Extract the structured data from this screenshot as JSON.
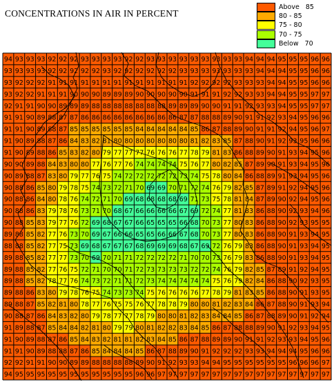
{
  "title": "CONCENTRATIONS IN AIR IN PERCENT",
  "legend": [
    {
      "label": "Above   85",
      "color": "#FF5A00"
    },
    {
      "label": "80 - 85",
      "color": "#FFAA00"
    },
    {
      "label": "75 - 80",
      "color": "#FFFF00"
    },
    {
      "label": "70 - 75",
      "color": "#AAFF00"
    },
    {
      "label": "Below   70",
      "color": "#44FF99"
    }
  ],
  "grid": {
    "rows": 28,
    "cols": 30,
    "values": [
      [
        94,
        93,
        93,
        93,
        92,
        92,
        92,
        93,
        93,
        93,
        93,
        92,
        92,
        93,
        93,
        93,
        93,
        93,
        93,
        93,
        93,
        93,
        94,
        94,
        94,
        95,
        95,
        95,
        96,
        96
      ],
      [
        93,
        93,
        93,
        93,
        92,
        92,
        92,
        92,
        92,
        93,
        92,
        92,
        92,
        92,
        92,
        92,
        93,
        93,
        93,
        93,
        93,
        93,
        93,
        94,
        94,
        94,
        95,
        95,
        96,
        96
      ],
      [
        93,
        92,
        92,
        92,
        91,
        91,
        91,
        91,
        91,
        91,
        91,
        91,
        91,
        91,
        91,
        91,
        91,
        92,
        92,
        92,
        92,
        93,
        93,
        93,
        94,
        94,
        95,
        95,
        96,
        96
      ],
      [
        93,
        92,
        92,
        91,
        91,
        91,
        90,
        90,
        90,
        89,
        89,
        89,
        90,
        90,
        90,
        90,
        90,
        91,
        91,
        91,
        92,
        92,
        93,
        93,
        94,
        94,
        95,
        95,
        97,
        97
      ],
      [
        92,
        91,
        91,
        90,
        90,
        89,
        89,
        89,
        88,
        88,
        88,
        88,
        88,
        88,
        88,
        89,
        89,
        89,
        90,
        90,
        91,
        91,
        92,
        93,
        93,
        94,
        95,
        95,
        97,
        97
      ],
      [
        91,
        91,
        90,
        89,
        88,
        87,
        87,
        86,
        86,
        86,
        86,
        86,
        86,
        86,
        86,
        86,
        87,
        87,
        88,
        88,
        89,
        90,
        91,
        91,
        92,
        93,
        94,
        95,
        96,
        96
      ],
      [
        91,
        91,
        90,
        89,
        88,
        87,
        85,
        85,
        85,
        85,
        85,
        85,
        84,
        84,
        84,
        84,
        84,
        85,
        86,
        87,
        88,
        89,
        90,
        91,
        91,
        92,
        94,
        95,
        96,
        97
      ],
      [
        91,
        90,
        89,
        88,
        87,
        86,
        84,
        83,
        82,
        81,
        80,
        80,
        80,
        80,
        80,
        80,
        80,
        81,
        82,
        83,
        85,
        87,
        88,
        90,
        91,
        92,
        93,
        95,
        96,
        96
      ],
      [
        91,
        90,
        89,
        88,
        86,
        85,
        83,
        82,
        80,
        79,
        77,
        77,
        77,
        76,
        76,
        76,
        77,
        78,
        79,
        81,
        83,
        86,
        88,
        89,
        90,
        91,
        93,
        94,
        95,
        96
      ],
      [
        90,
        90,
        89,
        88,
        84,
        83,
        80,
        80,
        77,
        76,
        77,
        76,
        74,
        74,
        74,
        74,
        75,
        76,
        77,
        80,
        82,
        85,
        87,
        89,
        90,
        91,
        93,
        94,
        95,
        96
      ],
      [
        90,
        89,
        88,
        87,
        83,
        80,
        79,
        77,
        76,
        75,
        74,
        72,
        72,
        72,
        72,
        72,
        73,
        74,
        75,
        78,
        80,
        84,
        86,
        88,
        89,
        91,
        93,
        94,
        95,
        96
      ],
      [
        90,
        88,
        86,
        85,
        80,
        79,
        78,
        75,
        74,
        73,
        72,
        71,
        70,
        69,
        69,
        70,
        71,
        72,
        74,
        76,
        79,
        82,
        85,
        87,
        89,
        91,
        92,
        94,
        95,
        96
      ],
      [
        90,
        88,
        86,
        84,
        80,
        78,
        76,
        74,
        72,
        71,
        70,
        69,
        68,
        68,
        68,
        68,
        69,
        71,
        73,
        75,
        78,
        81,
        84,
        87,
        89,
        90,
        92,
        94,
        95,
        96
      ],
      [
        90,
        88,
        86,
        83,
        79,
        78,
        76,
        73,
        71,
        70,
        68,
        67,
        66,
        66,
        66,
        66,
        67,
        69,
        72,
        74,
        77,
        81,
        83,
        86,
        88,
        90,
        92,
        93,
        94,
        96
      ],
      [
        90,
        88,
        85,
        83,
        79,
        77,
        76,
        72,
        69,
        68,
        67,
        67,
        66,
        65,
        65,
        65,
        66,
        68,
        70,
        73,
        77,
        80,
        83,
        86,
        88,
        90,
        92,
        93,
        95,
        95
      ],
      [
        89,
        88,
        85,
        82,
        77,
        76,
        73,
        70,
        69,
        67,
        66,
        66,
        65,
        65,
        66,
        66,
        67,
        68,
        70,
        73,
        77,
        80,
        83,
        86,
        88,
        90,
        91,
        93,
        94,
        95
      ],
      [
        88,
        88,
        85,
        82,
        77,
        75,
        73,
        69,
        68,
        67,
        67,
        67,
        68,
        69,
        69,
        69,
        68,
        67,
        69,
        72,
        76,
        79,
        83,
        86,
        88,
        90,
        91,
        93,
        94,
        95
      ],
      [
        89,
        88,
        85,
        82,
        77,
        77,
        73,
        70,
        69,
        70,
        71,
        71,
        72,
        72,
        72,
        72,
        71,
        70,
        70,
        73,
        76,
        79,
        83,
        86,
        88,
        90,
        91,
        93,
        94,
        95
      ],
      [
        89,
        88,
        85,
        82,
        77,
        76,
        75,
        72,
        71,
        70,
        70,
        71,
        72,
        73,
        73,
        73,
        73,
        72,
        72,
        74,
        76,
        79,
        82,
        85,
        87,
        89,
        91,
        92,
        94,
        95
      ],
      [
        89,
        88,
        85,
        82,
        78,
        77,
        76,
        74,
        73,
        72,
        71,
        71,
        72,
        73,
        74,
        74,
        74,
        74,
        74,
        75,
        76,
        79,
        82,
        84,
        86,
        88,
        90,
        92,
        93,
        95
      ],
      [
        89,
        88,
        86,
        83,
        80,
        79,
        78,
        76,
        75,
        74,
        73,
        73,
        74,
        75,
        76,
        76,
        76,
        76,
        77,
        78,
        79,
        81,
        83,
        85,
        86,
        88,
        90,
        91,
        93,
        95
      ],
      [
        89,
        88,
        87,
        85,
        82,
        81,
        80,
        78,
        77,
        76,
        75,
        75,
        76,
        77,
        78,
        78,
        79,
        80,
        80,
        81,
        82,
        83,
        84,
        86,
        87,
        88,
        90,
        91,
        93,
        94
      ],
      [
        90,
        88,
        87,
        86,
        84,
        83,
        82,
        80,
        79,
        78,
        77,
        77,
        78,
        79,
        80,
        80,
        81,
        82,
        83,
        84,
        84,
        85,
        86,
        87,
        88,
        89,
        90,
        91,
        92,
        94
      ],
      [
        91,
        89,
        88,
        87,
        85,
        84,
        84,
        82,
        81,
        80,
        79,
        79,
        80,
        81,
        82,
        82,
        83,
        84,
        85,
        86,
        87,
        88,
        88,
        89,
        90,
        91,
        92,
        93,
        94,
        95
      ],
      [
        91,
        90,
        89,
        88,
        87,
        86,
        85,
        84,
        83,
        82,
        81,
        81,
        82,
        83,
        84,
        85,
        86,
        87,
        88,
        89,
        89,
        90,
        91,
        91,
        92,
        93,
        93,
        94,
        95,
        96
      ],
      [
        91,
        91,
        90,
        89,
        88,
        88,
        87,
        86,
        85,
        84,
        84,
        84,
        85,
        86,
        87,
        88,
        89,
        90,
        91,
        92,
        92,
        92,
        93,
        93,
        94,
        94,
        94,
        95,
        96,
        96
      ],
      [
        92,
        92,
        91,
        91,
        90,
        90,
        89,
        89,
        88,
        88,
        88,
        88,
        89,
        90,
        91,
        92,
        93,
        93,
        94,
        94,
        95,
        95,
        95,
        95,
        95,
        95,
        96,
        96,
        96,
        97
      ],
      [
        94,
        95,
        95,
        95,
        95,
        95,
        95,
        95,
        95,
        95,
        95,
        95,
        96,
        96,
        97,
        97,
        97,
        97,
        97,
        97,
        97,
        97,
        97,
        97,
        97,
        97,
        97,
        97,
        97,
        97
      ]
    ]
  }
}
